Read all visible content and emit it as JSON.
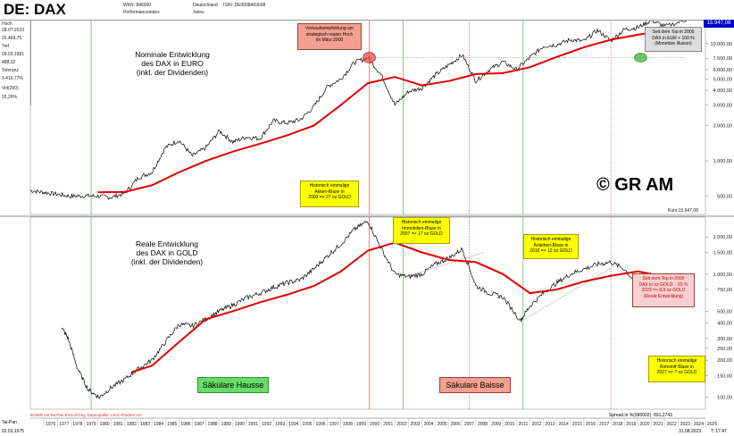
{
  "header": {
    "title": "DE: DAX",
    "wkn": "WKN: 846900",
    "index_type": "Performanceindex",
    "country": "Deutschland",
    "exchange": "Xetra",
    "isin": "ISIN: DE0008469008"
  },
  "left_info": [
    {
      "label": "Hoch",
      "value": "28.07.2023"
    },
    {
      "label": "",
      "value": "16.469,75"
    },
    {
      "label": "Tief",
      "value": "09.02.1981"
    },
    {
      "label": "",
      "value": "488,32"
    },
    {
      "label": "Toleranz",
      "value": "3.416,77%"
    },
    {
      "label": "Vol(250)",
      "value": "15,26%"
    }
  ],
  "copyright": "© GR AM",
  "top_panel": {
    "title": "Nominale Entwicklung\ndes DAX in EURO\n(inkl. der Dividenden)",
    "current_badge": "15.947,08",
    "kurs_label": "Kurs:15.947,08",
    "sell_box": "Verkaufsempfehlung am\nstrategisch realen Hoch\nim März 2000",
    "bubble_box": "Historisch einmalige\nAktien-Blase in\n2000 => 27 oz GOLD",
    "info_box": "Seit dem Top in 2000\nDAX in EUR + 100 %\n(Monetäre Illusion)"
  },
  "bottom_panel": {
    "title": "Reale Entwicklung\ndes DAX in GOLD\n(inkl. der Dividenden)",
    "hausse_label": "Säkulare Hausse",
    "baisse_label": "Säkulare Baisse",
    "immo_box": "Historisch einmalige\nImmobilien-Blase in\n2007 => 17 oz GOLD",
    "anleihen_box": "Historisch einmalige\nAnleihen-Blase in\n2016 => 12 oz GOLD",
    "rohstoff_box": "Historisch einmalige\nRohstoff-Blase in\n2027 => ? oz GOLD",
    "real_box": "Seit dem Top in 2000\nDAX in oz GOLD: - 65 %\n2023 => 8,9 oz GOLD\n(Reale Entwicklung)"
  },
  "footer": {
    "source": "Erstellt mit Tai-Pan End-of-Day, Datenquelle: Lenz+Partner AG",
    "spread": "Spread in %(990002): 891,2743",
    "brand": "Tai-Pan",
    "start_date": "02.01.1975",
    "end_date": "31.08.2023",
    "time": "T: 17:47"
  },
  "colors": {
    "price_line": "#000000",
    "moving_average": "#e00000",
    "green_marker": "#3cb03c",
    "red_marker": "#e05050",
    "badge": "#0000cc",
    "box_fill": "#ffff00",
    "sell_fill": "#f4a090",
    "hausse_fill": "#66dd66",
    "baisse_fill": "#f4a090"
  },
  "chart_data": [
    {
      "type": "line",
      "title": "Nominale Entwicklung des DAX in EURO (inkl. der Dividenden)",
      "y_scale": "log",
      "ylim": [
        350,
        16000
      ],
      "yticks": [
        500,
        1000,
        2000,
        3000,
        4000,
        5000,
        6000,
        7500,
        10000
      ],
      "ytick_labels": [
        "500,00",
        "1.000,00",
        "2.000,00",
        "3.000,00",
        "4.000,00",
        "5.000,00",
        "6.000,00",
        "7.500,00",
        "10.000,00"
      ],
      "xlim": [
        1975,
        2025
      ],
      "reference_level": 7600,
      "series": [
        {
          "values_x": [
            1975,
            1976,
            1977,
            1978,
            1979,
            1980,
            1981,
            1982,
            1983,
            1984,
            1985,
            1986,
            1987,
            1988,
            1989,
            1990,
            1991,
            1992,
            1993,
            1994,
            1995,
            1996,
            1997,
            1998,
            1999,
            2000,
            2001,
            2002,
            2003,
            2004,
            2005,
            2006,
            2007,
            2008,
            2009,
            2010,
            2011,
            2012,
            2013,
            2014,
            2015,
            2016,
            2017,
            2018,
            2019,
            2020,
            2021,
            2022,
            2023.6
          ],
          "values_y": [
            560,
            540,
            520,
            500,
            505,
            500,
            490,
            530,
            720,
            800,
            1300,
            1500,
            1100,
            1300,
            1800,
            1450,
            1600,
            1550,
            2200,
            2100,
            2250,
            2900,
            4300,
            5000,
            6900,
            7600,
            5400,
            3000,
            3900,
            4200,
            5400,
            6600,
            8000,
            4800,
            6000,
            7000,
            6000,
            7600,
            9500,
            9800,
            10800,
            10500,
            13000,
            10600,
            13200,
            13700,
            15800,
            14000,
            15947
          ]
        },
        {
          "values_x": [
            1980,
            1982,
            1984,
            1986,
            1988,
            1990,
            1992,
            1994,
            1996,
            1998,
            2000,
            2002,
            2004,
            2006,
            2008,
            2010,
            2012,
            2014,
            2016,
            2018,
            2020,
            2022,
            2023.6
          ],
          "values_y": [
            540,
            545,
            620,
            800,
            1000,
            1200,
            1400,
            1650,
            2000,
            3000,
            4600,
            5200,
            4400,
            4800,
            5500,
            5600,
            6300,
            7700,
            9300,
            10800,
            11900,
            12900,
            13400
          ]
        }
      ]
    },
    {
      "type": "line",
      "title": "Reale Entwicklung des DAX in GOLD (inkl. der Dividenden)",
      "y_scale": "log",
      "ylim": [
        80,
        2900
      ],
      "yticks": [
        100,
        150,
        200,
        250,
        300,
        400,
        500,
        750,
        1000,
        1500,
        2000
      ],
      "ytick_labels": [
        "100,00",
        "150,00",
        "200,00",
        "250,00",
        "300,00",
        "400,00",
        "500,00",
        "750,00",
        "1.000,00",
        "1.500,00",
        "2.000,00"
      ],
      "xlim": [
        1975,
        2025
      ],
      "series": [
        {
          "values_x": [
            1977.3,
            1977.8,
            1978.5,
            1979.3,
            1980.1,
            1981,
            1982,
            1983,
            1984,
            1985,
            1986,
            1987,
            1988,
            1989,
            1990,
            1991,
            1992,
            1993,
            1994,
            1995,
            1996,
            1997,
            1998,
            1999,
            2000,
            2001,
            2002,
            2003,
            2004,
            2005,
            2006,
            2007,
            2008,
            2009,
            2010,
            2011.3,
            2012,
            2013,
            2014,
            2015,
            2016,
            2017,
            2018,
            2019,
            2020,
            2021,
            2022,
            2023.6
          ],
          "values_y": [
            370,
            300,
            170,
            115,
            100,
            120,
            140,
            170,
            200,
            280,
            390,
            380,
            430,
            500,
            560,
            640,
            700,
            780,
            850,
            900,
            1100,
            1400,
            1750,
            2300,
            2700,
            1600,
            1000,
            950,
            1000,
            1200,
            1350,
            1600,
            800,
            700,
            650,
            420,
            550,
            700,
            850,
            1000,
            1100,
            1200,
            1250,
            1100,
            800,
            1000,
            750,
            900
          ]
        },
        {
          "values_x": [
            1982.5,
            1984,
            1986,
            1988,
            1990,
            1992,
            1994,
            1996,
            1998,
            2000,
            2002,
            2004,
            2006,
            2008,
            2010,
            2012,
            2014,
            2016,
            2018,
            2020,
            2022,
            2023.6
          ],
          "values_y": [
            160,
            180,
            280,
            430,
            500,
            590,
            680,
            800,
            1050,
            1550,
            1800,
            1500,
            1300,
            1250,
            1000,
            700,
            750,
            870,
            970,
            1050,
            950,
            900
          ]
        }
      ]
    }
  ],
  "x_axis_years": [
    "1976",
    "1977",
    "1978",
    "1979",
    "1980",
    "1981",
    "1982",
    "1983",
    "1984",
    "1985",
    "1986",
    "1987",
    "1988",
    "1989",
    "1990",
    "1991",
    "1992",
    "1993",
    "1994",
    "1995",
    "1996",
    "1997",
    "1998",
    "1999",
    "2000",
    "2001",
    "2002",
    "2003",
    "2004",
    "2005",
    "2006",
    "2007",
    "2008",
    "2009",
    "2010",
    "2011",
    "2012",
    "2013",
    "2014",
    "2015",
    "2016",
    "2017",
    "2018",
    "2019",
    "2020",
    "2021",
    "2022",
    "2023",
    "2024",
    "2025"
  ],
  "vertical_markers": [
    {
      "year": 1979.5,
      "color": "green"
    },
    {
      "year": 2000.1,
      "color": "red"
    },
    {
      "year": 2002.6,
      "color": "green"
    },
    {
      "year": 2007.5,
      "color": "red"
    },
    {
      "year": 2011.5,
      "color": "green"
    },
    {
      "year": 2018.0,
      "color": "red"
    }
  ]
}
